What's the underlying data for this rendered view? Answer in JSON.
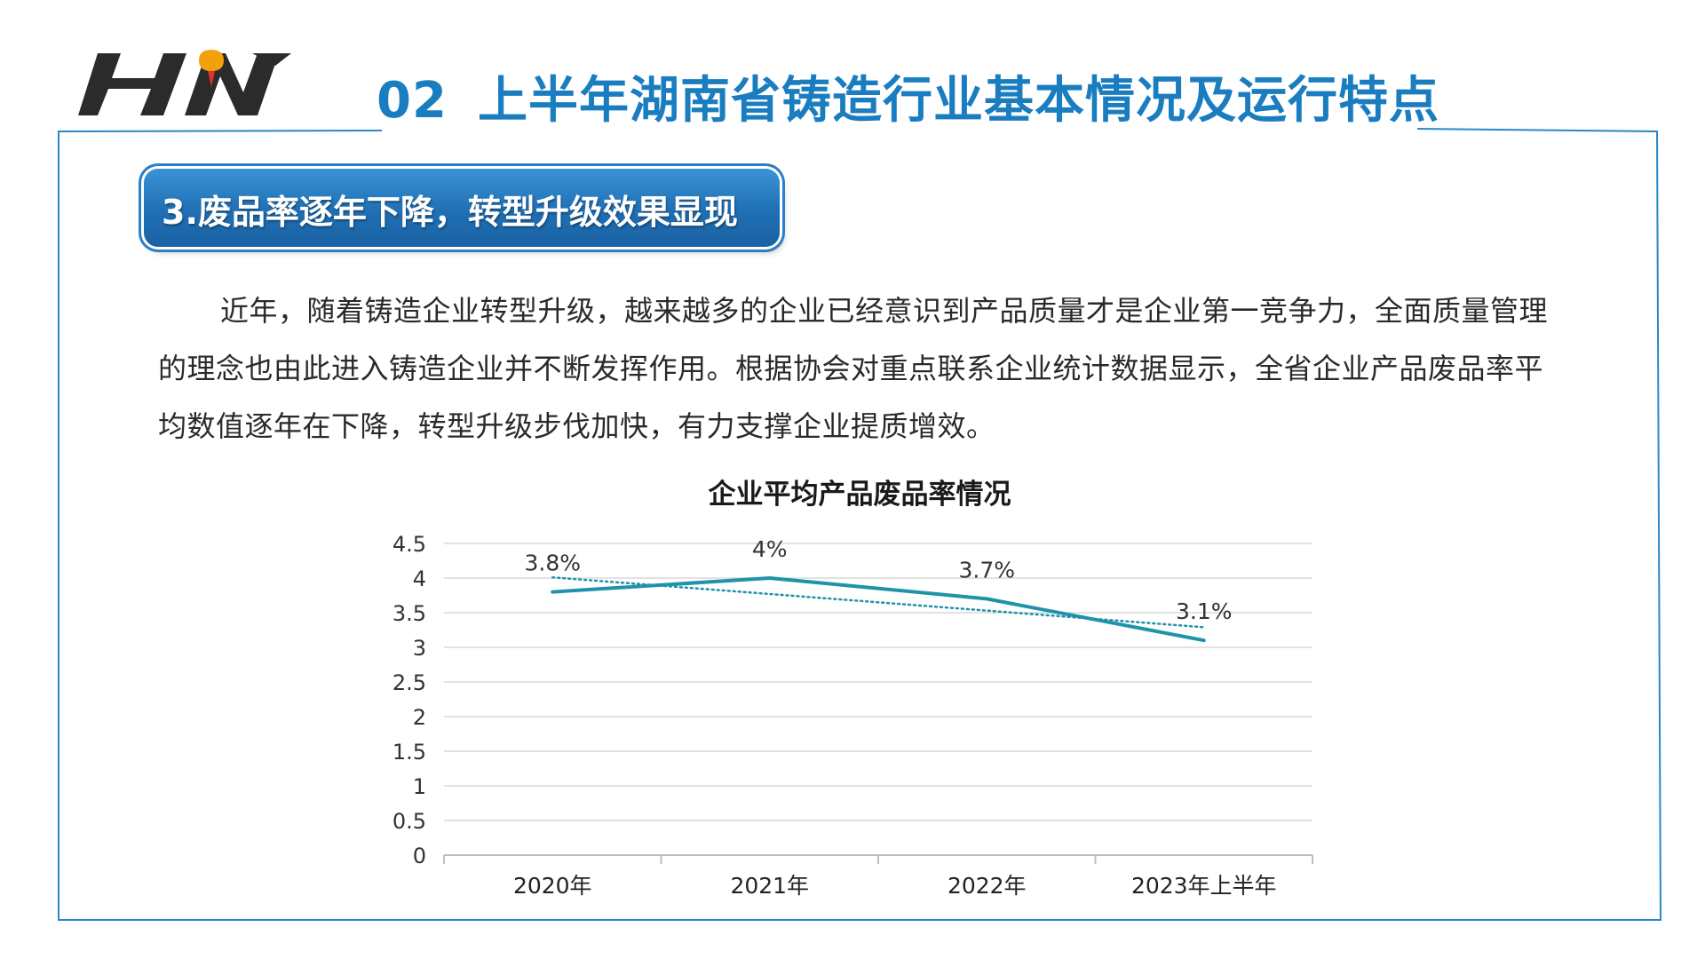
{
  "header": {
    "logo_text": "HN",
    "section_number": "02",
    "title": "上半年湖南省铸造行业基本情况及运行特点"
  },
  "section": {
    "label": "3.废品率逐年下降，转型升级效果显现"
  },
  "body_text": "近年，随着铸造企业转型升级，越来越多的企业已经意识到产品质量才是企业第一竞争力，全面质量管理的理念也由此进入铸造企业并不断发挥作用。根据协会对重点联系企业统计数据显示，全省企业产品废品率平均数值逐年在下降，转型升级步伐加快，有力支撑企业提质增效。",
  "colors": {
    "title_blue": "#1a7dc0",
    "line": "#1f93a8",
    "trendline": "#1f93a8",
    "gridline": "#d9d9d9"
  },
  "chart_data": {
    "type": "line",
    "title": "企业平均产品废品率情况",
    "categories": [
      "2020年",
      "2021年",
      "2022年",
      "2023年上半年"
    ],
    "series": [
      {
        "values": [
          3.8,
          4.0,
          3.7,
          3.1
        ],
        "data_labels": [
          "3.8%",
          "4%",
          "3.7%",
          "3.1%"
        ]
      }
    ],
    "trendline": {
      "type": "linear",
      "style": "dotted"
    },
    "ylim": [
      0,
      4.5
    ],
    "yticks": [
      "0",
      "0.5",
      "1",
      "1.5",
      "2",
      "2.5",
      "3",
      "3.5",
      "4",
      "4.5"
    ],
    "grid": true,
    "legend": "none"
  }
}
